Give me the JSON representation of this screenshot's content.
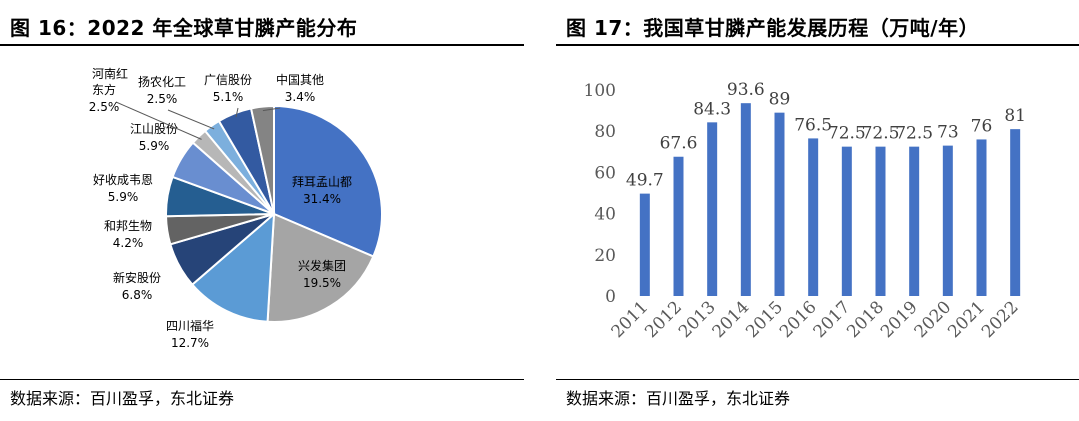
{
  "left": {
    "title": "图 16：2022 年全球草甘膦产能分布",
    "source": "数据来源：百川盈孚，东北证券"
  },
  "right": {
    "title": "图 17：我国草甘膦产能发展历程（万吨/年）",
    "source": "数据来源：百川盈孚，东北证券"
  },
  "colors": {
    "bar": "#4472C4"
  },
  "chart_data": [
    {
      "type": "pie",
      "title": "2022 年全球草甘膦产能分布",
      "slices": [
        {
          "name": "拜耳孟山都",
          "label_pct": "31.4%",
          "value": 31.4,
          "color": "#4472C4"
        },
        {
          "name": "兴发集团",
          "label_pct": "19.5%",
          "value": 19.5,
          "color": "#A5A5A5"
        },
        {
          "name": "四川福华",
          "label_pct": "12.7%",
          "value": 12.7,
          "color": "#5B9BD5"
        },
        {
          "name": "新安股份",
          "label_pct": "6.8%",
          "value": 6.8,
          "color": "#264478"
        },
        {
          "name": "和邦生物",
          "label_pct": "4.2%",
          "value": 4.2,
          "color": "#636363"
        },
        {
          "name": "好收成韦恩",
          "label_pct": "5.9%",
          "value": 5.9,
          "color": "#255E91"
        },
        {
          "name": "江山股份",
          "label_pct": "5.9%",
          "value": 5.9,
          "color": "#698ED0"
        },
        {
          "name": "河南红东方",
          "label_pct": "2.5%",
          "value": 2.5,
          "color": "#B7B7B7"
        },
        {
          "name": "扬农化工",
          "label_pct": "2.5%",
          "value": 2.5,
          "color": "#7CAFDD"
        },
        {
          "name": "广信股份",
          "label_pct": "5.1%",
          "value": 5.1,
          "color": "#335AA1"
        },
        {
          "name": "中国其他",
          "label_pct": "3.4%",
          "value": 3.4,
          "color": "#848484"
        }
      ]
    },
    {
      "type": "bar",
      "title": "我国草甘膦产能发展历程（万吨/年）",
      "categories": [
        "2011",
        "2012",
        "2013",
        "2014",
        "2015",
        "2016",
        "2017",
        "2018",
        "2019",
        "2020",
        "2021",
        "2022"
      ],
      "values": [
        49.7,
        67.6,
        84.3,
        93.6,
        89,
        76.5,
        72.5,
        72.5,
        72.5,
        73,
        76,
        81
      ],
      "value_labels": [
        "49.7",
        "67.6",
        "84.3",
        "93.6",
        "89",
        "76.5",
        "72.5",
        "72.5",
        "72.5",
        "73",
        "76",
        "81"
      ],
      "yticks": [
        "0",
        "20",
        "40",
        "60",
        "80",
        "100"
      ],
      "ylim": [
        0,
        100
      ],
      "grid": false,
      "legend": "none"
    }
  ]
}
